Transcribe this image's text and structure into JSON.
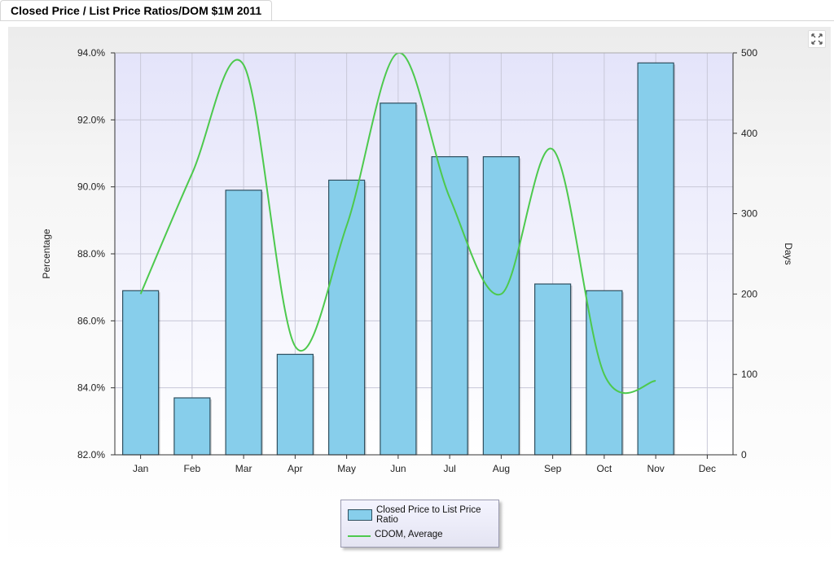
{
  "page": {
    "tab_title": "Closed Price / List Price Ratios/DOM $1M 2011"
  },
  "icons": {
    "expand": "expand-arrows-icon"
  },
  "colors": {
    "bar_fill": "#87ceeb",
    "bar_stroke": "#2f4f5f",
    "line": "#4dc94d",
    "plot_bg_top": "#e6e6fa",
    "plot_bg_bottom": "#ffffff",
    "grid": "#c8c8d8"
  },
  "chart_data": {
    "type": "bar",
    "title": "Closed Price / List Price Ratios/DOM $1M 2011",
    "categories": [
      "Jan",
      "Feb",
      "Mar",
      "Apr",
      "May",
      "Jun",
      "Jul",
      "Aug",
      "Sep",
      "Oct",
      "Nov",
      "Dec"
    ],
    "ylabel": "Percentage",
    "y2label": "Days",
    "ylim": [
      82,
      94
    ],
    "y2lim": [
      0,
      500
    ],
    "yticks": [
      "82.0%",
      "84.0%",
      "86.0%",
      "88.0%",
      "90.0%",
      "92.0%",
      "94.0%"
    ],
    "y2ticks": [
      "0",
      "100",
      "200",
      "300",
      "400",
      "500"
    ],
    "grid": true,
    "legend_position": "bottom-center",
    "series": [
      {
        "name": "Closed Price to List Price Ratio",
        "type": "bar",
        "axis": "left",
        "values": [
          86.9,
          83.7,
          89.9,
          85.0,
          90.2,
          92.5,
          90.9,
          90.9,
          87.1,
          86.9,
          93.7,
          null
        ]
      },
      {
        "name": "CDOM, Average",
        "type": "line",
        "axis": "right",
        "smooth": true,
        "values": [
          200,
          350,
          485,
          135,
          285,
          500,
          320,
          200,
          380,
          100,
          92,
          null
        ]
      }
    ]
  }
}
